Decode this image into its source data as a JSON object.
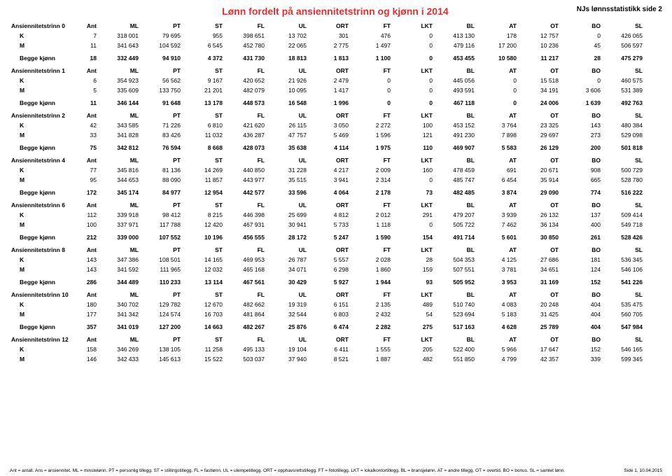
{
  "title": "Lønn fordelt på ansiennitetstrinn og kjønn i 2014",
  "header_right": "NJs lønnsstatistikk side 2",
  "columns": [
    "Ant",
    "ML",
    "PT",
    "ST",
    "FL",
    "UL",
    "ORT",
    "FT",
    "LKT",
    "BL",
    "AT",
    "OT",
    "BO",
    "SL"
  ],
  "footnote_left": "Ant = antall. Ans = ansiennitet. ML = minstelønn. PT = personlig tillegg. ST = stillingstillegg. FL = fastlønn. UL = ulempetillegg. ORT = opphavsrettstillegg. FT = fototillegg. LKT = lokalkontortillegg. BL = bransjelønn. AT = andre tillegg. OT = overtid. BO = bonus. SL = samlet lønn.",
  "footnote_right": "Side 1, 10.04.2015",
  "labels": {
    "K": "K",
    "M": "M",
    "B": "Begge kjønn"
  },
  "sections": [
    {
      "name": "Ansiennitetstrinn 0",
      "rows": [
        {
          "t": "K",
          "v": [
            "7",
            "318 001",
            "79 695",
            "955",
            "398 651",
            "13 702",
            "301",
            "476",
            "0",
            "413 130",
            "178",
            "12 757",
            "0",
            "426 065"
          ]
        },
        {
          "t": "M",
          "v": [
            "11",
            "341 643",
            "104 592",
            "6 545",
            "452 780",
            "22 065",
            "2 775",
            "1 497",
            "0",
            "479 116",
            "17 200",
            "10 236",
            "45",
            "506 597"
          ]
        },
        {
          "t": "B",
          "v": [
            "18",
            "332 449",
            "94 910",
            "4 372",
            "431 730",
            "18 813",
            "1 813",
            "1 100",
            "0",
            "453 455",
            "10 580",
            "11 217",
            "28",
            "475 279"
          ]
        }
      ]
    },
    {
      "name": "Ansiennitetstrinn 1",
      "rows": [
        {
          "t": "K",
          "v": [
            "6",
            "354 923",
            "56 562",
            "9 167",
            "420 652",
            "21 926",
            "2 479",
            "0",
            "0",
            "445 056",
            "0",
            "15 518",
            "0",
            "460 575"
          ]
        },
        {
          "t": "M",
          "v": [
            "5",
            "335 609",
            "133 750",
            "21 201",
            "482 079",
            "10 095",
            "1 417",
            "0",
            "0",
            "493 591",
            "0",
            "34 191",
            "3 606",
            "531 389"
          ]
        },
        {
          "t": "B",
          "v": [
            "11",
            "346 144",
            "91 648",
            "13 178",
            "448 573",
            "16 548",
            "1 996",
            "0",
            "0",
            "467 118",
            "0",
            "24 006",
            "1 639",
            "492 763"
          ]
        }
      ]
    },
    {
      "name": "Ansiennitetstrinn 2",
      "rows": [
        {
          "t": "K",
          "v": [
            "42",
            "343 585",
            "71 226",
            "6 810",
            "421 620",
            "26 115",
            "3 050",
            "2 272",
            "100",
            "453 152",
            "3 764",
            "23 325",
            "143",
            "480 384"
          ]
        },
        {
          "t": "M",
          "v": [
            "33",
            "341 828",
            "83 426",
            "11 032",
            "436 287",
            "47 757",
            "5 469",
            "1 596",
            "121",
            "491 230",
            "7 898",
            "29 697",
            "273",
            "529 098"
          ]
        },
        {
          "t": "B",
          "v": [
            "75",
            "342 812",
            "76 594",
            "8 668",
            "428 073",
            "35 638",
            "4 114",
            "1 975",
            "110",
            "469 907",
            "5 583",
            "26 129",
            "200",
            "501 818"
          ]
        }
      ]
    },
    {
      "name": "Ansiennitetstrinn 4",
      "rows": [
        {
          "t": "K",
          "v": [
            "77",
            "345 816",
            "81 136",
            "14 269",
            "440 850",
            "31 228",
            "4 217",
            "2 009",
            "160",
            "478 459",
            "691",
            "20 671",
            "908",
            "500 729"
          ]
        },
        {
          "t": "M",
          "v": [
            "95",
            "344 653",
            "88 090",
            "11 857",
            "443 977",
            "35 515",
            "3 941",
            "2 314",
            "0",
            "485 747",
            "6 454",
            "35 914",
            "665",
            "528 780"
          ]
        },
        {
          "t": "B",
          "v": [
            "172",
            "345 174",
            "84 977",
            "12 954",
            "442 577",
            "33 596",
            "4 064",
            "2 178",
            "73",
            "482 485",
            "3 874",
            "29 090",
            "774",
            "516 222"
          ]
        }
      ]
    },
    {
      "name": "Ansiennitetstrinn 6",
      "rows": [
        {
          "t": "K",
          "v": [
            "112",
            "339 918",
            "98 412",
            "8 215",
            "446 398",
            "25 699",
            "4 812",
            "2 012",
            "291",
            "479 207",
            "3 939",
            "26 132",
            "137",
            "509 414"
          ]
        },
        {
          "t": "M",
          "v": [
            "100",
            "337 971",
            "117 788",
            "12 420",
            "467 931",
            "30 941",
            "5 733",
            "1 118",
            "0",
            "505 722",
            "7 462",
            "36 134",
            "400",
            "549 718"
          ]
        },
        {
          "t": "B",
          "v": [
            "212",
            "339 000",
            "107 552",
            "10 196",
            "456 555",
            "28 172",
            "5 247",
            "1 590",
            "154",
            "491 714",
            "5 601",
            "30 850",
            "261",
            "528 426"
          ]
        }
      ]
    },
    {
      "name": "Ansiennitetstrinn 8",
      "rows": [
        {
          "t": "K",
          "v": [
            "143",
            "347 386",
            "108 501",
            "14 165",
            "469 953",
            "26 787",
            "5 557",
            "2 028",
            "28",
            "504 353",
            "4 125",
            "27 686",
            "181",
            "536 345"
          ]
        },
        {
          "t": "M",
          "v": [
            "143",
            "341 592",
            "111 965",
            "12 032",
            "465 168",
            "34 071",
            "6 298",
            "1 860",
            "159",
            "507 551",
            "3 781",
            "34 651",
            "124",
            "546 106"
          ]
        },
        {
          "t": "B",
          "v": [
            "286",
            "344 489",
            "110 233",
            "13 114",
            "467 561",
            "30 429",
            "5 927",
            "1 944",
            "93",
            "505 952",
            "3 953",
            "31 169",
            "152",
            "541 226"
          ]
        }
      ]
    },
    {
      "name": "Ansiennitetstrinn 10",
      "rows": [
        {
          "t": "K",
          "v": [
            "180",
            "340 702",
            "129 782",
            "12 670",
            "482 662",
            "19 319",
            "6 151",
            "2 135",
            "489",
            "510 740",
            "4 083",
            "20 248",
            "404",
            "535 475"
          ]
        },
        {
          "t": "M",
          "v": [
            "177",
            "341 342",
            "124 574",
            "16 703",
            "481 864",
            "32 544",
            "6 803",
            "2 432",
            "54",
            "523 694",
            "5 183",
            "31 425",
            "404",
            "560 705"
          ]
        },
        {
          "t": "B",
          "v": [
            "357",
            "341 019",
            "127 200",
            "14 663",
            "482 267",
            "25 876",
            "6 474",
            "2 282",
            "275",
            "517 163",
            "4 628",
            "25 789",
            "404",
            "547 984"
          ]
        }
      ]
    },
    {
      "name": "Ansiennitetstrinn 12",
      "rows": [
        {
          "t": "K",
          "v": [
            "158",
            "346 269",
            "138 105",
            "11 258",
            "495 133",
            "19 104",
            "6 411",
            "1 555",
            "205",
            "522 400",
            "5 966",
            "17 647",
            "152",
            "546 165"
          ]
        },
        {
          "t": "M",
          "v": [
            "146",
            "342 433",
            "145 613",
            "15 522",
            "503 037",
            "37 940",
            "8 521",
            "1 887",
            "482",
            "551 850",
            "4 799",
            "42 357",
            "339",
            "599 345"
          ]
        }
      ]
    }
  ]
}
